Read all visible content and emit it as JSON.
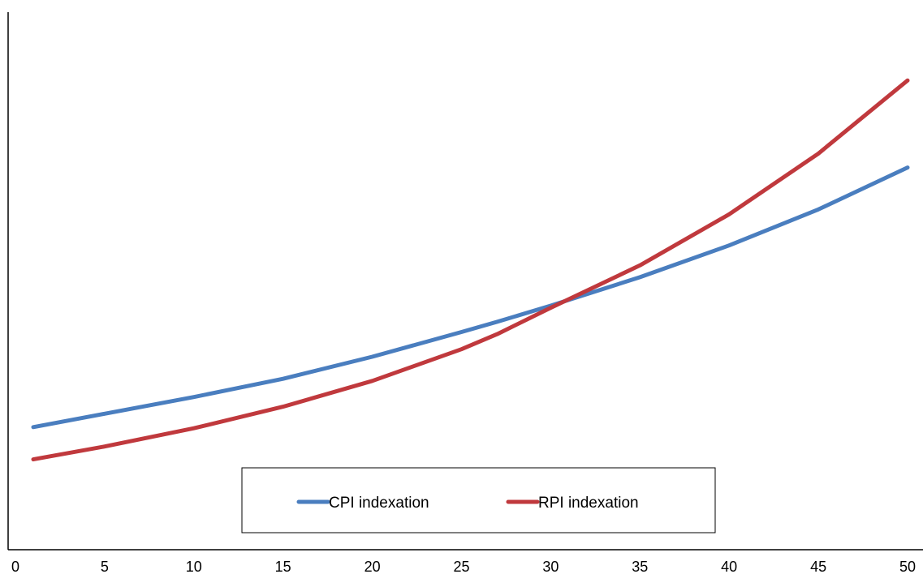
{
  "chart_data": {
    "type": "line",
    "title": "",
    "xlabel": "",
    "ylabel": "",
    "xlim": [
      0,
      50
    ],
    "ylim": [
      0,
      100
    ],
    "x_ticks": [
      0,
      5,
      10,
      15,
      20,
      25,
      30,
      35,
      40,
      45,
      50
    ],
    "x_tick_labels": [
      "0",
      "5",
      "10",
      "15",
      "20",
      "25",
      "30",
      "35",
      "40",
      "45",
      "50"
    ],
    "y_axis_labels_shown": false,
    "grid": false,
    "legend_position": "bottom-center",
    "series": [
      {
        "name": "CPI indexation",
        "color": "#4a7ebf",
        "x": [
          1,
          5,
          10,
          15,
          20,
          25,
          27,
          30,
          35,
          40,
          45,
          50
        ],
        "y": [
          22.8,
          25.3,
          28.4,
          31.8,
          35.9,
          40.5,
          42.4,
          45.4,
          50.7,
          56.6,
          63.3,
          71.1
        ]
      },
      {
        "name": "RPI indexation",
        "color": "#c0393d",
        "x": [
          1,
          5,
          10,
          15,
          20,
          25,
          27,
          30,
          35,
          40,
          45,
          50
        ],
        "y": [
          16.8,
          19.2,
          22.6,
          26.6,
          31.4,
          37.3,
          40.1,
          45.0,
          52.9,
          62.4,
          73.7,
          87.3
        ]
      }
    ]
  }
}
